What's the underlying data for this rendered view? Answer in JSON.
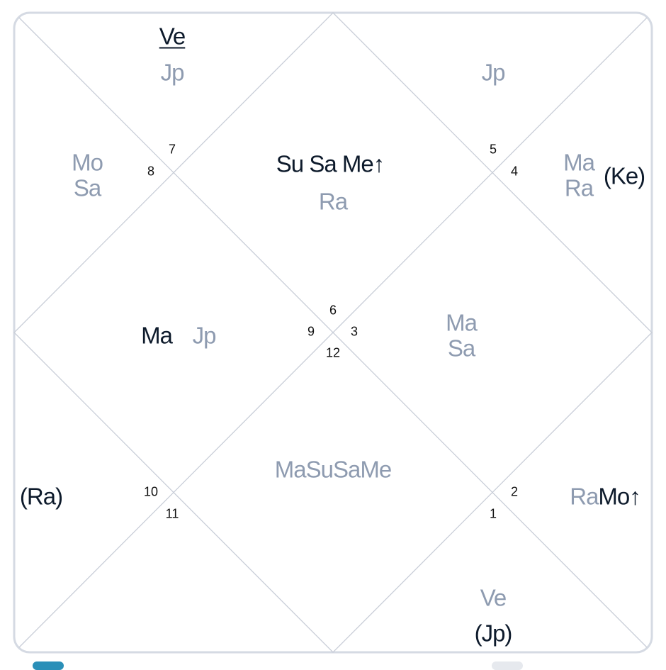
{
  "colors": {
    "line": "#c9ced8",
    "border": "#d5dae3",
    "muted": "#8e9bb0",
    "dark": "#0d1a2b"
  },
  "houses": {
    "n1": "1",
    "n2": "2",
    "n3": "3",
    "n4": "4",
    "n5": "5",
    "n6": "6",
    "n7": "7",
    "n8": "8",
    "n9": "9",
    "n10": "10",
    "n11": "11",
    "n12": "12"
  },
  "planets": {
    "top_left_ve": "Ve",
    "top_left_jp": "Jp",
    "top_right_jp": "Jp",
    "left_upper_mo": "Mo",
    "left_upper_sa": "Sa",
    "top_center_dark": "Su Sa Me↑",
    "top_center_ra": "Ra",
    "right_upper_ma": "Ma",
    "right_upper_ra": "Ra",
    "right_upper_ke": "(Ke)",
    "left_center_ma": "Ma",
    "left_center_jp": "Jp",
    "right_center_ma": "Ma",
    "right_center_sa": "Sa",
    "bottom_center": "MaSuSaMe",
    "left_lower_ra": "(Ra)",
    "right_lower_ra": "Ra",
    "right_lower_mo": "Mo↑",
    "bottom_right_ve": "Ve",
    "bottom_right_jp": "(Jp)"
  }
}
